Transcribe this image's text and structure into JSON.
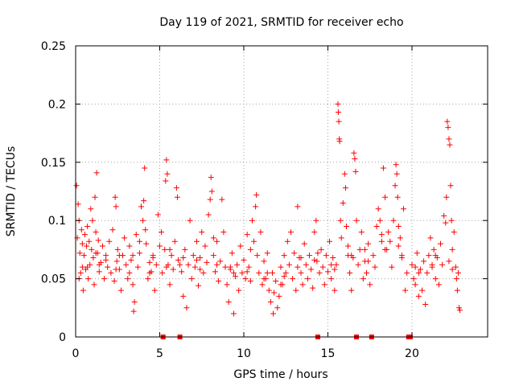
{
  "chart_data": {
    "type": "scatter",
    "title": "Day 119 of 2021, SRMTID for receiver echo",
    "xlabel": "GPS time / hours",
    "ylabel": "SRMTID / TECUs",
    "xlim": [
      0,
      24.5
    ],
    "ylim": [
      0,
      0.25
    ],
    "x_ticks": [
      0,
      5,
      10,
      15,
      20
    ],
    "x_tick_labels": [
      "0",
      "5",
      "10",
      "15",
      "20"
    ],
    "y_ticks": [
      0,
      0.05,
      0.1,
      0.15,
      0.2,
      0.25
    ],
    "y_tick_labels": [
      "0",
      "0.05",
      "0.1",
      "0.15",
      "0.2",
      "0.25"
    ],
    "grid": true,
    "marker": "plus",
    "color": "#ff0000",
    "zero_value_markers_x": [
      5.2,
      6.2,
      14.4,
      16.7,
      17.6,
      19.8,
      19.9
    ],
    "series": [
      {
        "name": "SRMTID",
        "points": [
          [
            0.05,
            0.13
          ],
          [
            0.1,
            0.085
          ],
          [
            0.15,
            0.114
          ],
          [
            0.2,
            0.1
          ],
          [
            0.25,
            0.072
          ],
          [
            0.3,
            0.055
          ],
          [
            0.35,
            0.092
          ],
          [
            0.4,
            0.06
          ],
          [
            0.45,
            0.04
          ],
          [
            0.5,
            0.07
          ],
          [
            0.55,
            0.088
          ],
          [
            0.6,
            0.058
          ],
          [
            0.65,
            0.078
          ],
          [
            0.7,
            0.095
          ],
          [
            0.75,
            0.05
          ],
          [
            0.8,
            0.082
          ],
          [
            0.85,
            0.062
          ],
          [
            0.9,
            0.11
          ],
          [
            0.95,
            0.075
          ],
          [
            1.0,
            0.1
          ],
          [
            1.05,
            0.068
          ],
          [
            1.1,
            0.045
          ],
          [
            1.15,
            0.12
          ],
          [
            1.2,
            0.09
          ],
          [
            1.25,
            0.141
          ],
          [
            1.3,
            0.072
          ],
          [
            1.35,
            0.083
          ],
          [
            1.4,
            0.056
          ],
          [
            1.5,
            0.064
          ],
          [
            1.6,
            0.078
          ],
          [
            1.7,
            0.05
          ],
          [
            1.8,
            0.07
          ],
          [
            1.9,
            0.06
          ],
          [
            2.0,
            0.082
          ],
          [
            2.1,
            0.055
          ],
          [
            2.2,
            0.092
          ],
          [
            2.3,
            0.048
          ],
          [
            2.35,
            0.12
          ],
          [
            2.4,
            0.112
          ],
          [
            2.45,
            0.065
          ],
          [
            2.5,
            0.075
          ],
          [
            2.6,
            0.058
          ],
          [
            2.7,
            0.04
          ],
          [
            2.8,
            0.07
          ],
          [
            2.9,
            0.085
          ],
          [
            3.0,
            0.062
          ],
          [
            3.1,
            0.05
          ],
          [
            3.2,
            0.078
          ],
          [
            3.3,
            0.066
          ],
          [
            3.4,
            0.045
          ],
          [
            3.45,
            0.022
          ],
          [
            3.5,
            0.03
          ],
          [
            3.6,
            0.088
          ],
          [
            3.7,
            0.06
          ],
          [
            3.8,
            0.072
          ],
          [
            3.9,
            0.112
          ],
          [
            4.0,
            0.1
          ],
          [
            4.05,
            0.117
          ],
          [
            4.1,
            0.145
          ],
          [
            4.15,
            0.092
          ],
          [
            4.2,
            0.08
          ],
          [
            4.3,
            0.05
          ],
          [
            4.4,
            0.064
          ],
          [
            4.5,
            0.056
          ],
          [
            4.6,
            0.07
          ],
          [
            4.7,
            0.04
          ],
          [
            4.8,
            0.062
          ],
          [
            4.9,
            0.105
          ],
          [
            5.0,
            0.078
          ],
          [
            5.1,
            0.09
          ],
          [
            5.15,
            0.055
          ],
          [
            5.3,
            0.075
          ],
          [
            5.35,
            0.134
          ],
          [
            5.4,
            0.152
          ],
          [
            5.45,
            0.14
          ],
          [
            5.5,
            0.062
          ],
          [
            5.6,
            0.045
          ],
          [
            5.7,
            0.07
          ],
          [
            5.8,
            0.058
          ],
          [
            5.9,
            0.082
          ],
          [
            6.0,
            0.128
          ],
          [
            6.05,
            0.12
          ],
          [
            6.1,
            0.066
          ],
          [
            6.3,
            0.056
          ],
          [
            6.4,
            0.035
          ],
          [
            6.5,
            0.075
          ],
          [
            6.6,
            0.025
          ],
          [
            6.7,
            0.062
          ],
          [
            6.8,
            0.1
          ],
          [
            6.9,
            0.05
          ],
          [
            7.0,
            0.07
          ],
          [
            7.1,
            0.06
          ],
          [
            7.2,
            0.082
          ],
          [
            7.3,
            0.044
          ],
          [
            7.4,
            0.068
          ],
          [
            7.5,
            0.09
          ],
          [
            7.6,
            0.055
          ],
          [
            7.7,
            0.078
          ],
          [
            7.8,
            0.064
          ],
          [
            7.9,
            0.105
          ],
          [
            8.0,
            0.118
          ],
          [
            8.05,
            0.137
          ],
          [
            8.1,
            0.125
          ],
          [
            8.2,
            0.07
          ],
          [
            8.3,
            0.056
          ],
          [
            8.4,
            0.082
          ],
          [
            8.5,
            0.048
          ],
          [
            8.6,
            0.065
          ],
          [
            8.7,
            0.118
          ],
          [
            8.8,
            0.09
          ],
          [
            8.9,
            0.06
          ],
          [
            9.0,
            0.045
          ],
          [
            9.1,
            0.03
          ],
          [
            9.2,
            0.058
          ],
          [
            9.3,
            0.072
          ],
          [
            9.4,
            0.02
          ],
          [
            9.5,
            0.052
          ],
          [
            9.6,
            0.062
          ],
          [
            9.7,
            0.04
          ],
          [
            9.8,
            0.078
          ],
          [
            9.9,
            0.055
          ],
          [
            10.0,
            0.066
          ],
          [
            10.1,
            0.05
          ],
          [
            10.2,
            0.088
          ],
          [
            10.3,
            0.06
          ],
          [
            10.4,
            0.075
          ],
          [
            10.5,
            0.1
          ],
          [
            10.6,
            0.082
          ],
          [
            10.7,
            0.112
          ],
          [
            10.75,
            0.122
          ],
          [
            10.8,
            0.07
          ],
          [
            10.9,
            0.055
          ],
          [
            11.0,
            0.09
          ],
          [
            11.1,
            0.045
          ],
          [
            11.2,
            0.065
          ],
          [
            11.3,
            0.05
          ],
          [
            11.4,
            0.072
          ],
          [
            11.5,
            0.04
          ],
          [
            11.6,
            0.03
          ],
          [
            11.7,
            0.055
          ],
          [
            11.75,
            0.02
          ],
          [
            11.8,
            0.038
          ],
          [
            11.9,
            0.048
          ],
          [
            12.0,
            0.025
          ],
          [
            12.1,
            0.035
          ],
          [
            12.2,
            0.06
          ],
          [
            12.3,
            0.045
          ],
          [
            12.4,
            0.07
          ],
          [
            12.5,
            0.055
          ],
          [
            12.6,
            0.082
          ],
          [
            12.7,
            0.062
          ],
          [
            12.8,
            0.09
          ],
          [
            12.9,
            0.05
          ],
          [
            13.0,
            0.072
          ],
          [
            13.1,
            0.04
          ],
          [
            13.2,
            0.112
          ],
          [
            13.3,
            0.068
          ],
          [
            13.4,
            0.055
          ],
          [
            13.5,
            0.045
          ],
          [
            13.6,
            0.08
          ],
          [
            13.7,
            0.062
          ],
          [
            13.8,
            0.05
          ],
          [
            13.9,
            0.07
          ],
          [
            14.0,
            0.058
          ],
          [
            14.1,
            0.042
          ],
          [
            14.2,
            0.09
          ],
          [
            14.3,
            0.1
          ],
          [
            14.35,
            0.065
          ],
          [
            14.5,
            0.055
          ],
          [
            14.6,
            0.075
          ],
          [
            14.7,
            0.06
          ],
          [
            14.8,
            0.045
          ],
          [
            14.9,
            0.07
          ],
          [
            15.0,
            0.056
          ],
          [
            15.1,
            0.082
          ],
          [
            15.2,
            0.05
          ],
          [
            15.3,
            0.068
          ],
          [
            15.4,
            0.04
          ],
          [
            15.5,
            0.062
          ],
          [
            15.6,
            0.2
          ],
          [
            15.62,
            0.193
          ],
          [
            15.65,
            0.185
          ],
          [
            15.68,
            0.17
          ],
          [
            15.7,
            0.168
          ],
          [
            15.75,
            0.1
          ],
          [
            15.8,
            0.085
          ],
          [
            15.9,
            0.115
          ],
          [
            16.0,
            0.14
          ],
          [
            16.05,
            0.128
          ],
          [
            16.1,
            0.095
          ],
          [
            16.2,
            0.07
          ],
          [
            16.3,
            0.055
          ],
          [
            16.4,
            0.04
          ],
          [
            16.5,
            0.068
          ],
          [
            16.55,
            0.158
          ],
          [
            16.6,
            0.153
          ],
          [
            16.65,
            0.142
          ],
          [
            16.7,
            0.1
          ],
          [
            16.8,
            0.062
          ],
          [
            16.9,
            0.075
          ],
          [
            17.0,
            0.09
          ],
          [
            17.1,
            0.05
          ],
          [
            17.2,
            0.065
          ],
          [
            17.3,
            0.055
          ],
          [
            17.4,
            0.08
          ],
          [
            17.5,
            0.045
          ],
          [
            17.7,
            0.07
          ],
          [
            17.8,
            0.06
          ],
          [
            17.9,
            0.095
          ],
          [
            18.0,
            0.11
          ],
          [
            18.1,
            0.1
          ],
          [
            18.2,
            0.088
          ],
          [
            18.3,
            0.145
          ],
          [
            18.4,
            0.12
          ],
          [
            18.5,
            0.075
          ],
          [
            18.6,
            0.09
          ],
          [
            18.7,
            0.082
          ],
          [
            18.8,
            0.06
          ],
          [
            18.9,
            0.1
          ],
          [
            19.0,
            0.13
          ],
          [
            19.05,
            0.148
          ],
          [
            19.1,
            0.14
          ],
          [
            19.15,
            0.12
          ],
          [
            19.2,
            0.095
          ],
          [
            19.3,
            0.085
          ],
          [
            19.4,
            0.07
          ],
          [
            19.5,
            0.11
          ],
          [
            19.6,
            0.04
          ],
          [
            19.7,
            0.055
          ],
          [
            20.0,
            0.062
          ],
          [
            20.1,
            0.05
          ],
          [
            20.2,
            0.045
          ],
          [
            20.3,
            0.072
          ],
          [
            20.4,
            0.035
          ],
          [
            20.5,
            0.058
          ],
          [
            20.6,
            0.04
          ],
          [
            20.7,
            0.065
          ],
          [
            20.8,
            0.028
          ],
          [
            20.9,
            0.055
          ],
          [
            21.0,
            0.07
          ],
          [
            21.1,
            0.085
          ],
          [
            21.2,
            0.06
          ],
          [
            21.3,
            0.075
          ],
          [
            21.4,
            0.05
          ],
          [
            21.5,
            0.068
          ],
          [
            21.6,
            0.045
          ],
          [
            21.7,
            0.08
          ],
          [
            21.8,
            0.062
          ],
          [
            21.9,
            0.104
          ],
          [
            22.0,
            0.098
          ],
          [
            22.05,
            0.12
          ],
          [
            22.1,
            0.185
          ],
          [
            22.15,
            0.18
          ],
          [
            22.2,
            0.17
          ],
          [
            22.25,
            0.165
          ],
          [
            22.3,
            0.13
          ],
          [
            22.35,
            0.1
          ],
          [
            22.4,
            0.075
          ],
          [
            22.5,
            0.09
          ],
          [
            22.6,
            0.06
          ],
          [
            22.65,
            0.05
          ],
          [
            22.7,
            0.04
          ],
          [
            22.75,
            0.055
          ],
          [
            22.8,
            0.025
          ],
          [
            22.85,
            0.023
          ],
          [
            0.2,
            0.05
          ],
          [
            0.7,
            0.06
          ],
          [
            1.2,
            0.072
          ],
          [
            1.8,
            0.066
          ],
          [
            2.6,
            0.07
          ],
          [
            3.2,
            0.055
          ],
          [
            3.8,
            0.082
          ],
          [
            4.6,
            0.068
          ],
          [
            5.6,
            0.075
          ],
          [
            6.2,
            0.062
          ],
          [
            7.2,
            0.066
          ],
          [
            8.2,
            0.085
          ],
          [
            9.2,
            0.06
          ],
          [
            10.2,
            0.056
          ],
          [
            11.2,
            0.05
          ],
          [
            12.2,
            0.045
          ],
          [
            13.2,
            0.06
          ],
          [
            14.2,
            0.066
          ],
          [
            15.2,
            0.062
          ],
          [
            16.2,
            0.078
          ],
          [
            17.2,
            0.075
          ],
          [
            18.2,
            0.082
          ],
          [
            19.2,
            0.078
          ],
          [
            20.2,
            0.06
          ],
          [
            21.2,
            0.062
          ],
          [
            22.2,
            0.065
          ],
          [
            0.4,
            0.08
          ],
          [
            1.4,
            0.062
          ],
          [
            2.4,
            0.058
          ],
          [
            3.4,
            0.07
          ],
          [
            4.4,
            0.055
          ],
          [
            5.4,
            0.06
          ],
          [
            6.4,
            0.068
          ],
          [
            7.4,
            0.058
          ],
          [
            8.4,
            0.062
          ],
          [
            9.4,
            0.055
          ],
          [
            10.4,
            0.048
          ],
          [
            11.4,
            0.055
          ],
          [
            12.4,
            0.052
          ],
          [
            13.4,
            0.068
          ],
          [
            14.4,
            0.072
          ],
          [
            15.4,
            0.058
          ],
          [
            16.4,
            0.07
          ],
          [
            17.4,
            0.065
          ],
          [
            18.4,
            0.075
          ],
          [
            19.4,
            0.068
          ],
          [
            20.4,
            0.055
          ],
          [
            21.4,
            0.07
          ],
          [
            22.4,
            0.058
          ]
        ]
      }
    ]
  }
}
